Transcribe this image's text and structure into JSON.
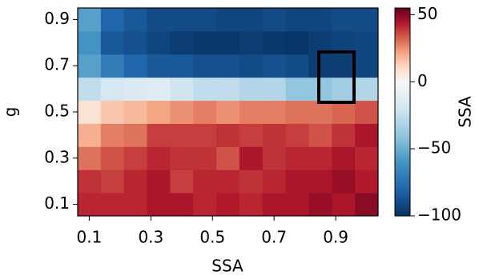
{
  "chart_data": {
    "type": "heatmap",
    "x_label": "SSA",
    "y_label": "g",
    "colorbar_label": "SSA",
    "cmap": "RdBu_r",
    "clim": [
      -100,
      55
    ],
    "vcenter": 0,
    "x": [
      0.1,
      0.175,
      0.25,
      0.325,
      0.4,
      0.475,
      0.55,
      0.625,
      0.7,
      0.775,
      0.85,
      0.925,
      1.0
    ],
    "y": [
      0.1,
      0.2,
      0.3,
      0.4,
      0.5,
      0.6,
      0.7,
      0.8,
      0.9
    ],
    "z": [
      [
        42,
        42,
        42,
        45,
        45,
        42,
        44,
        42,
        45,
        45,
        48,
        45,
        50
      ],
      [
        40,
        38,
        42,
        45,
        38,
        42,
        42,
        40,
        42,
        45,
        45,
        48,
        44
      ],
      [
        30,
        35,
        38,
        42,
        40,
        40,
        35,
        45,
        40,
        42,
        42,
        45,
        42
      ],
      [
        20,
        28,
        30,
        38,
        38,
        38,
        40,
        38,
        40,
        38,
        35,
        40,
        45
      ],
      [
        8,
        15,
        18,
        22,
        25,
        28,
        25,
        28,
        28,
        30,
        30,
        32,
        35
      ],
      [
        -25,
        -18,
        -15,
        -12,
        -20,
        -25,
        -25,
        -30,
        -30,
        -40,
        -40,
        -35,
        -30
      ],
      [
        -55,
        -70,
        -80,
        -85,
        -85,
        -88,
        -88,
        -90,
        -88,
        -90,
        -95,
        -95,
        -92
      ],
      [
        -60,
        -85,
        -88,
        -92,
        -95,
        -97,
        -97,
        -95,
        -97,
        -98,
        -95,
        -93,
        -92
      ],
      [
        -55,
        -80,
        -85,
        -90,
        -90,
        -90,
        -92,
        -92,
        -90,
        -92,
        -92,
        -90,
        -90
      ]
    ],
    "xlim": [
      0.0625,
      1.0375
    ],
    "ylim": [
      0.05,
      0.95
    ],
    "xticks": [
      0.1,
      0.3,
      0.5,
      0.7,
      0.9
    ],
    "yticks": [
      0.1,
      0.3,
      0.5,
      0.7,
      0.9
    ],
    "cticks": [
      {
        "value": -100,
        "label": "−100"
      },
      {
        "value": -50,
        "label": "−50"
      },
      0,
      50
    ]
  }
}
